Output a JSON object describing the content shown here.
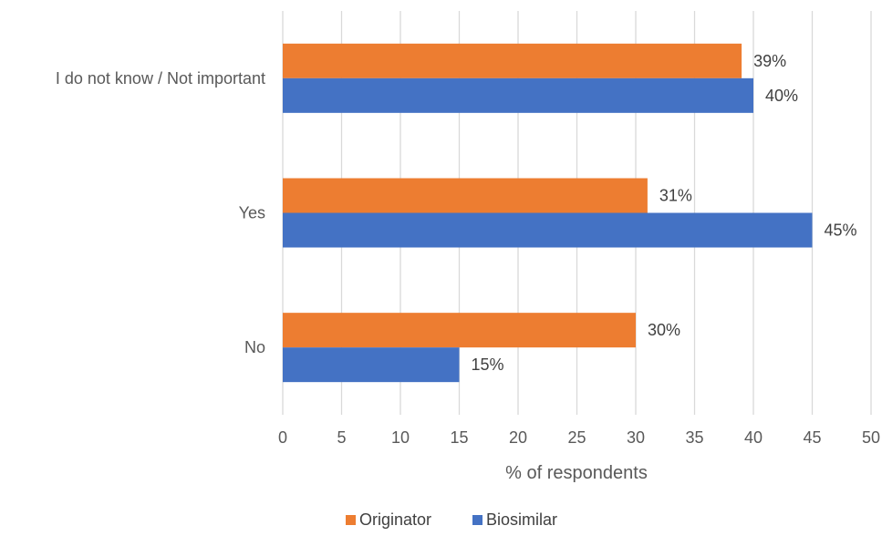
{
  "chart_data": {
    "type": "bar",
    "orientation": "horizontal",
    "categories": [
      "I do not know / Not important",
      "Yes",
      "No"
    ],
    "series": [
      {
        "name": "Originator",
        "values": [
          39,
          31,
          30
        ],
        "labels": [
          "39%",
          "31%",
          "30%"
        ],
        "color": "#ED7D31"
      },
      {
        "name": "Biosimilar",
        "values": [
          40,
          45,
          15
        ],
        "labels": [
          "40%",
          "45%",
          "15%"
        ],
        "color": "#4472C4"
      }
    ],
    "xlabel": "% of respondents",
    "xlim": [
      0,
      50
    ],
    "xticks": [
      0,
      5,
      10,
      15,
      20,
      25,
      30,
      35,
      40,
      45,
      50
    ],
    "grid": true,
    "legend_position": "bottom"
  }
}
